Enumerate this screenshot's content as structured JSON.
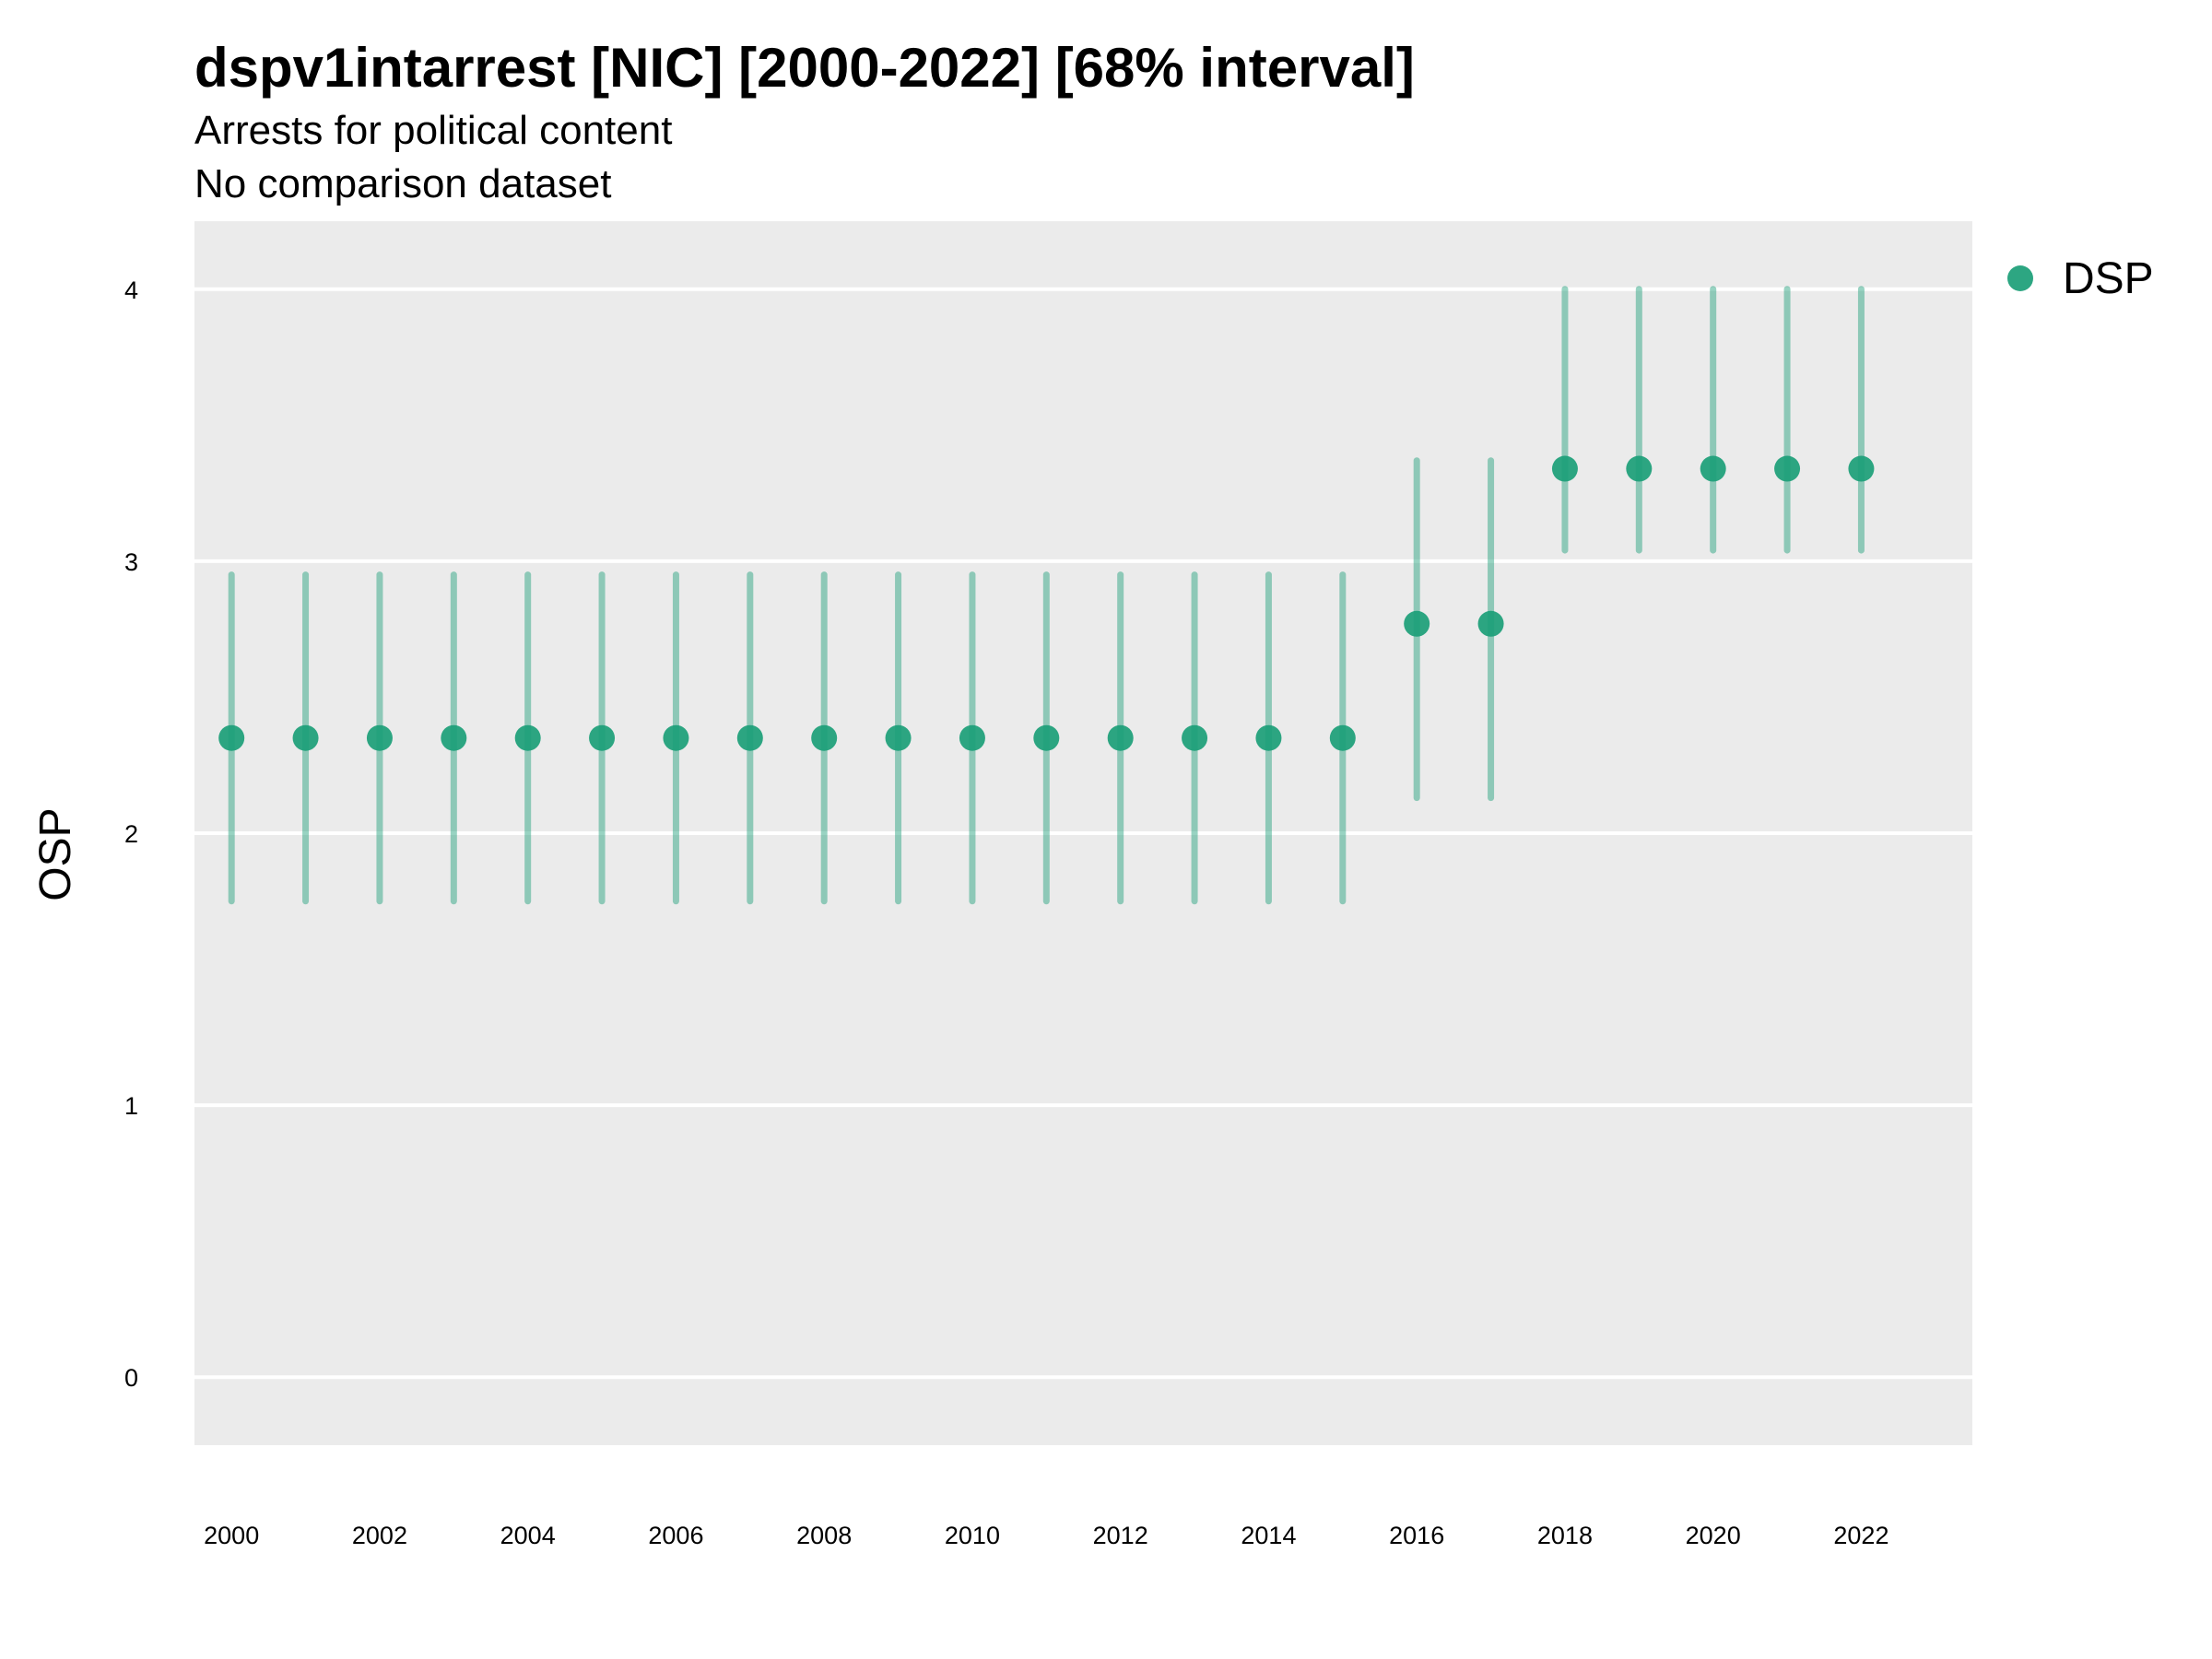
{
  "chart_data": {
    "type": "scatter",
    "title": "dspv1intarrest [NIC] [2000-2022] [68% interval]",
    "subtitle": "Arrests for political content",
    "subtitle2": "No comparison dataset",
    "ylabel": "OSP",
    "xlabel": "",
    "ylim": [
      -0.25,
      4.25
    ],
    "xlim": [
      1999.5,
      2023.5
    ],
    "yticks": [
      0,
      1,
      2,
      3,
      4
    ],
    "xticks": [
      2000,
      2002,
      2004,
      2006,
      2008,
      2010,
      2012,
      2014,
      2016,
      2018,
      2020,
      2022
    ],
    "grid": true,
    "legend_position": "right",
    "colors": {
      "series": "#1B9E77",
      "panel": "#EBEBEB",
      "grid": "#FFFFFF"
    },
    "series": [
      {
        "name": "DSP",
        "x": [
          2000,
          2001,
          2002,
          2003,
          2004,
          2005,
          2006,
          2007,
          2008,
          2009,
          2010,
          2011,
          2012,
          2013,
          2014,
          2015,
          2016,
          2017,
          2018,
          2019,
          2020,
          2021,
          2022
        ],
        "y": [
          2.35,
          2.35,
          2.35,
          2.35,
          2.35,
          2.35,
          2.35,
          2.35,
          2.35,
          2.35,
          2.35,
          2.35,
          2.35,
          2.35,
          2.35,
          2.35,
          2.77,
          2.77,
          3.34,
          3.34,
          3.34,
          3.34,
          3.34
        ],
        "lower": [
          1.75,
          1.75,
          1.75,
          1.75,
          1.75,
          1.75,
          1.75,
          1.75,
          1.75,
          1.75,
          1.75,
          1.75,
          1.75,
          1.75,
          1.75,
          1.75,
          2.13,
          2.13,
          3.04,
          3.04,
          3.04,
          3.04,
          3.04
        ],
        "upper": [
          2.95,
          2.95,
          2.95,
          2.95,
          2.95,
          2.95,
          2.95,
          2.95,
          2.95,
          2.95,
          2.95,
          2.95,
          2.95,
          2.95,
          2.95,
          2.95,
          3.37,
          3.37,
          4.0,
          4.0,
          4.0,
          4.0,
          4.0
        ]
      }
    ]
  }
}
